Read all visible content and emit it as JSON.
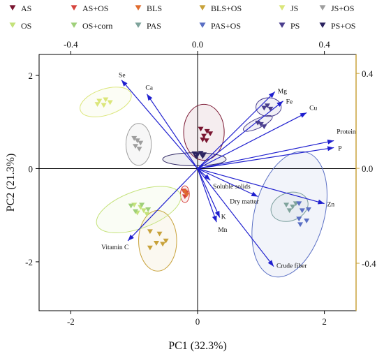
{
  "chart_data": {
    "type": "scatter",
    "subtype": "pca-biplot",
    "xlabel": "PC1 (32.3%)",
    "ylabel": "PC2 (21.3%)",
    "xlim": [
      -2.5,
      2.5
    ],
    "ylim": [
      -3.05,
      2.45
    ],
    "x_ticks": [
      -2,
      0,
      2
    ],
    "y_ticks": [
      2,
      0,
      -2
    ],
    "top_xlim": [
      -0.5,
      0.5
    ],
    "top_ticks": [
      "-0.4",
      "0.0",
      "0.4"
    ],
    "top_tick_values": [
      -0.4,
      0.0,
      0.4
    ],
    "right_ylim": [
      -0.6,
      0.48
    ],
    "right_ticks": [
      "0.4",
      "0.0",
      "-0.4"
    ],
    "right_tick_values": [
      0.4,
      0.0,
      -0.4
    ],
    "grid": false,
    "legend_position": "top",
    "colors": {
      "loading_arrow": "#1f1fcf",
      "right_axis": "#c8a23a",
      "zero_line": "#000000"
    },
    "series": [
      {
        "name": "AS",
        "color": "#7a1530",
        "points": [
          [
            0.05,
            0.85
          ],
          [
            0.15,
            0.8
          ],
          [
            0.1,
            0.7
          ],
          [
            0.2,
            0.75
          ],
          [
            0.08,
            0.62
          ],
          [
            0.14,
            0.6
          ]
        ]
      },
      {
        "name": "AS+OS",
        "color": "#d6443e",
        "points": [
          [
            -0.22,
            -0.48
          ],
          [
            -0.18,
            -0.52
          ],
          [
            -0.2,
            -0.6
          ]
        ]
      },
      {
        "name": "BLS",
        "color": "#e06c2e",
        "points": [
          [
            -0.2,
            -0.5
          ],
          [
            -0.17,
            -0.56
          ]
        ]
      },
      {
        "name": "BLS+OS",
        "color": "#c8a23a",
        "points": [
          [
            -0.75,
            -1.35
          ],
          [
            -0.6,
            -1.4
          ],
          [
            -0.5,
            -1.55
          ],
          [
            -0.65,
            -1.6
          ],
          [
            -0.75,
            -1.7
          ],
          [
            -0.55,
            -1.62
          ]
        ]
      },
      {
        "name": "JS",
        "color": "#dbe67a",
        "points": [
          [
            -1.55,
            1.45
          ],
          [
            -1.45,
            1.48
          ],
          [
            -1.38,
            1.42
          ],
          [
            -1.58,
            1.38
          ],
          [
            -1.48,
            1.36
          ]
        ]
      },
      {
        "name": "JS+OS",
        "color": "#9e9e9e",
        "points": [
          [
            -1.0,
            0.65
          ],
          [
            -0.95,
            0.6
          ],
          [
            -0.9,
            0.55
          ],
          [
            -0.98,
            0.48
          ],
          [
            -0.92,
            0.42
          ]
        ]
      },
      {
        "name": "OS",
        "color": "#c4e27a",
        "points": [
          [
            -1.0,
            -0.78
          ],
          [
            -0.9,
            -0.83
          ],
          [
            -0.85,
            -0.9
          ],
          [
            -0.95,
            -0.95
          ],
          [
            -0.8,
            -0.98
          ]
        ]
      },
      {
        "name": "OS+corn",
        "color": "#9fd07a",
        "points": [
          [
            -1.05,
            -0.8
          ],
          [
            -0.98,
            -0.92
          ],
          [
            -0.88,
            -0.78
          ],
          [
            -0.78,
            -0.88
          ]
        ]
      },
      {
        "name": "PAS",
        "color": "#7ea39b",
        "points": [
          [
            1.4,
            -0.78
          ],
          [
            1.5,
            -0.82
          ],
          [
            1.45,
            -0.9
          ],
          [
            1.55,
            -0.75
          ]
        ]
      },
      {
        "name": "PAS+OS",
        "color": "#5a6fc4",
        "points": [
          [
            1.6,
            -0.75
          ],
          [
            1.65,
            -0.9
          ],
          [
            1.75,
            -0.88
          ],
          [
            1.6,
            -1.08
          ],
          [
            1.72,
            -1.12
          ],
          [
            1.62,
            -1.2
          ]
        ]
      },
      {
        "name": "PS",
        "color": "#4a3e8e",
        "points": [
          [
            0.95,
            0.98
          ],
          [
            1.0,
            0.95
          ],
          [
            1.05,
            0.9
          ],
          [
            1.1,
            1.35
          ],
          [
            1.05,
            1.3
          ],
          [
            1.15,
            1.28
          ]
        ]
      },
      {
        "name": "PS+OS",
        "color": "#2b2360",
        "points": [
          [
            -0.05,
            0.32
          ],
          [
            0.0,
            0.3
          ],
          [
            0.05,
            0.33
          ],
          [
            0.1,
            0.3
          ],
          [
            -0.02,
            0.25
          ],
          [
            0.08,
            0.26
          ]
        ]
      }
    ],
    "ellipses": [
      {
        "series": "AS",
        "cx": 0.1,
        "cy": 0.78,
        "rx": 0.32,
        "ry": 0.6,
        "angle": 0
      },
      {
        "series": "AS+OS",
        "cx": -0.2,
        "cy": -0.55,
        "rx": 0.07,
        "ry": 0.18,
        "angle": 0
      },
      {
        "series": "BLS+OS",
        "cx": -0.63,
        "cy": -1.55,
        "rx": 0.3,
        "ry": 0.65,
        "angle": 0
      },
      {
        "series": "JS",
        "cx": -1.45,
        "cy": 1.43,
        "rx": 0.42,
        "ry": 0.28,
        "angle": -18
      },
      {
        "series": "JS+OS",
        "cx": -0.93,
        "cy": 0.52,
        "rx": 0.2,
        "ry": 0.45,
        "angle": 0
      },
      {
        "series": "OS",
        "cx": -0.93,
        "cy": -0.88,
        "rx": 0.7,
        "ry": 0.4,
        "angle": -20
      },
      {
        "series": "PAS",
        "cx": 1.45,
        "cy": -0.82,
        "rx": 0.3,
        "ry": 0.3,
        "angle": -20
      },
      {
        "series": "PAS+OS",
        "cx": 1.45,
        "cy": -0.98,
        "rx": 0.55,
        "ry": 1.38,
        "angle": 15
      },
      {
        "series": "PS",
        "cx": 0.95,
        "cy": 0.97,
        "rx": 0.25,
        "ry": 0.1,
        "angle": -25
      },
      {
        "series": "PS-top",
        "cx": 1.12,
        "cy": 1.32,
        "rx": 0.2,
        "ry": 0.2,
        "angle": 0
      },
      {
        "series": "PS+OS",
        "cx": -0.05,
        "cy": 0.2,
        "rx": 0.5,
        "ry": 0.14,
        "angle": 0
      }
    ],
    "loadings": [
      {
        "name": "Se",
        "x": -1.2,
        "y": 1.9
      },
      {
        "name": "Ca",
        "x": -0.8,
        "y": 1.6
      },
      {
        "name": "Mg",
        "x": 1.22,
        "y": 1.65
      },
      {
        "name": "Fe",
        "x": 1.35,
        "y": 1.45
      },
      {
        "name": "Cu",
        "x": 1.72,
        "y": 1.2
      },
      {
        "name": "Protein",
        "x": 2.15,
        "y": 0.6
      },
      {
        "name": "P",
        "x": 2.15,
        "y": 0.45
      },
      {
        "name": "Zn",
        "x": 2.0,
        "y": -0.75
      },
      {
        "name": "Dry matter",
        "x": 0.95,
        "y": -0.6
      },
      {
        "name": "Soluble solids",
        "x": 0.2,
        "y": -0.25
      },
      {
        "name": "K",
        "x": 0.35,
        "y": -1.05
      },
      {
        "name": "Mn",
        "x": 0.3,
        "y": -1.15
      },
      {
        "name": "Crude fiber",
        "x": 1.2,
        "y": -2.1
      },
      {
        "name": "Vitamin C",
        "x": -1.1,
        "y": -1.55
      }
    ]
  }
}
